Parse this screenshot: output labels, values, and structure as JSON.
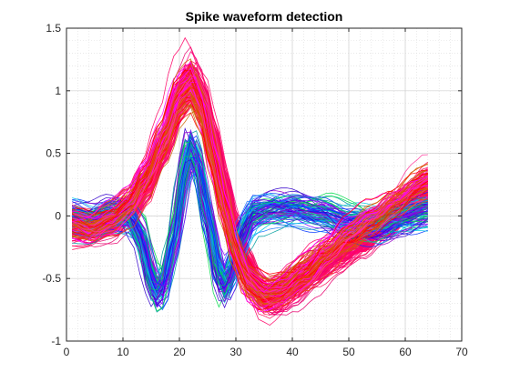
{
  "chart_data": {
    "type": "line",
    "title": "Spike waveform detection",
    "xlabel": "",
    "ylabel": "",
    "xlim": [
      0,
      70
    ],
    "ylim": [
      -1,
      1.5
    ],
    "xticks": [
      0,
      10,
      20,
      30,
      40,
      50,
      60,
      70
    ],
    "yticks": [
      -1,
      -0.5,
      0,
      0.5,
      1,
      1.5
    ],
    "xtick_labels": [
      "0",
      "10",
      "20",
      "30",
      "40",
      "50",
      "60",
      "70"
    ],
    "ytick_labels": [
      "-1",
      "-0.5",
      "0",
      "0.5",
      "1",
      "1.5"
    ],
    "grid": "major and minor, dotted",
    "legend": "none",
    "n_samples": 64,
    "series_groups": [
      {
        "shape": "dominant spike (peak ~22, trough ~36)",
        "count": 140,
        "template": [
          [
            1,
            -0.08
          ],
          [
            4,
            -0.1
          ],
          [
            8,
            -0.05
          ],
          [
            11,
            0.05
          ],
          [
            14,
            0.25
          ],
          [
            17,
            0.55
          ],
          [
            20,
            0.95
          ],
          [
            22,
            1.1
          ],
          [
            24,
            0.95
          ],
          [
            26,
            0.6
          ],
          [
            28,
            0.2
          ],
          [
            30,
            -0.15
          ],
          [
            32,
            -0.42
          ],
          [
            34,
            -0.6
          ],
          [
            36,
            -0.66
          ],
          [
            38,
            -0.62
          ],
          [
            40,
            -0.55
          ],
          [
            44,
            -0.42
          ],
          [
            48,
            -0.3
          ],
          [
            52,
            -0.2
          ],
          [
            56,
            -0.05
          ],
          [
            60,
            0.08
          ],
          [
            64,
            0.22
          ]
        ],
        "colors": [
          "#ff0066",
          "#ff0a5a",
          "#e8006e",
          "#ff1f4f",
          "#ff0080"
        ]
      },
      {
        "shape": "biphasic spike (trough ~16, peak ~22, trough ~28)",
        "count": 90,
        "template": [
          [
            1,
            -0.02
          ],
          [
            4,
            -0.05
          ],
          [
            8,
            0.02
          ],
          [
            11,
            0.0
          ],
          [
            13,
            -0.15
          ],
          [
            15,
            -0.5
          ],
          [
            16,
            -0.62
          ],
          [
            17,
            -0.58
          ],
          [
            19,
            -0.2
          ],
          [
            21,
            0.35
          ],
          [
            22,
            0.55
          ],
          [
            23,
            0.45
          ],
          [
            25,
            0.0
          ],
          [
            27,
            -0.45
          ],
          [
            28,
            -0.55
          ],
          [
            29,
            -0.45
          ],
          [
            31,
            -0.15
          ],
          [
            33,
            0.02
          ],
          [
            36,
            0.05
          ],
          [
            40,
            0.05
          ],
          [
            45,
            0.02
          ],
          [
            50,
            -0.05
          ],
          [
            55,
            -0.08
          ],
          [
            60,
            0.0
          ],
          [
            64,
            0.05
          ]
        ],
        "colors": [
          "#0033ff",
          "#7a00ff",
          "#00c8e6",
          "#00d94a",
          "#1f77ff",
          "#9900cc",
          "#3300cc",
          "#00a0a0"
        ]
      },
      {
        "shape": "spike with late rebound",
        "count": 60,
        "template": [
          [
            1,
            -0.05
          ],
          [
            4,
            -0.08
          ],
          [
            8,
            0.0
          ],
          [
            11,
            0.1
          ],
          [
            14,
            0.3
          ],
          [
            17,
            0.6
          ],
          [
            20,
            0.95
          ],
          [
            22,
            1.05
          ],
          [
            24,
            0.85
          ],
          [
            26,
            0.45
          ],
          [
            28,
            0.05
          ],
          [
            30,
            -0.3
          ],
          [
            32,
            -0.52
          ],
          [
            35,
            -0.62
          ],
          [
            38,
            -0.58
          ],
          [
            42,
            -0.45
          ],
          [
            46,
            -0.3
          ],
          [
            50,
            -0.15
          ],
          [
            54,
            -0.02
          ],
          [
            58,
            0.12
          ],
          [
            62,
            0.25
          ],
          [
            64,
            0.3
          ]
        ],
        "colors": [
          "#ff0000",
          "#cc6600",
          "#ff00ff",
          "#ff3399",
          "#e64d00"
        ]
      }
    ]
  }
}
